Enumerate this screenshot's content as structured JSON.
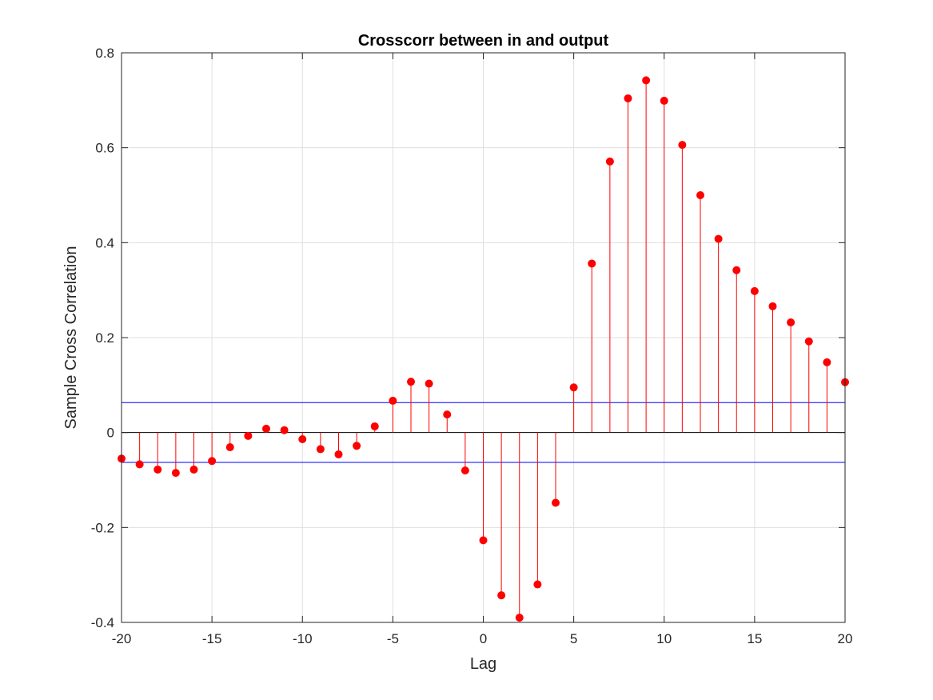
{
  "chart_data": {
    "type": "stem",
    "title": "Crosscorr between in and output",
    "xlabel": "Lag",
    "ylabel": "Sample Cross Correlation",
    "xlim": [
      -20,
      20
    ],
    "ylim": [
      -0.4,
      0.8
    ],
    "xticks": [
      -20,
      -15,
      -10,
      -5,
      0,
      5,
      10,
      15,
      20
    ],
    "yticks": [
      -0.4,
      -0.2,
      0,
      0.2,
      0.4,
      0.6,
      0.8
    ],
    "xtick_labels": [
      "-20",
      "-15",
      "-10",
      "-5",
      "0",
      "5",
      "10",
      "15",
      "20"
    ],
    "ytick_labels": [
      "-0.4",
      "-0.2",
      "0",
      "0.2",
      "0.4",
      "0.6",
      "0.8"
    ],
    "grid": true,
    "stem_color": "#ff0000",
    "bound_color": "#0000ff",
    "confidence_bounds": [
      0.063,
      -0.063
    ],
    "x": [
      -20,
      -19,
      -18,
      -17,
      -16,
      -15,
      -14,
      -13,
      -12,
      -11,
      -10,
      -9,
      -8,
      -7,
      -6,
      -5,
      -4,
      -3,
      -2,
      -1,
      0,
      1,
      2,
      3,
      4,
      5,
      6,
      7,
      8,
      9,
      10,
      11,
      12,
      13,
      14,
      15,
      16,
      17,
      18,
      19,
      20
    ],
    "values": [
      -0.055,
      -0.067,
      -0.078,
      -0.085,
      -0.078,
      -0.06,
      -0.031,
      -0.007,
      0.008,
      0.005,
      -0.014,
      -0.035,
      -0.046,
      -0.028,
      0.013,
      0.067,
      0.107,
      0.103,
      0.038,
      -0.08,
      -0.227,
      -0.343,
      -0.39,
      -0.32,
      -0.148,
      0.095,
      0.356,
      0.571,
      0.704,
      0.742,
      0.699,
      0.606,
      0.5,
      0.408,
      0.342,
      0.298,
      0.266,
      0.232,
      0.192,
      0.148,
      0.106
    ]
  }
}
